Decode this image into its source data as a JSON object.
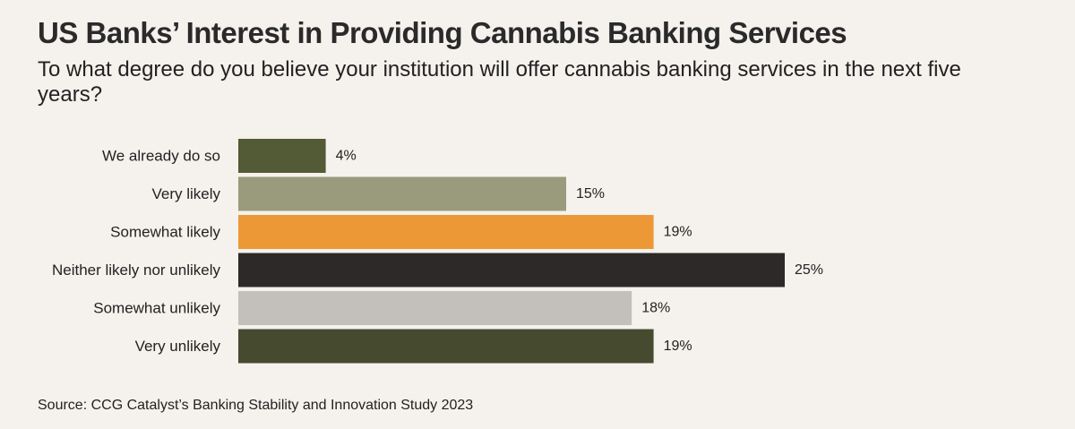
{
  "chart_data": {
    "type": "bar",
    "orientation": "horizontal",
    "title": "US Banks’ Interest in Providing Cannabis Banking Services",
    "subtitle": "To what degree do you believe your institution will offer cannabis banking services in the next five years?",
    "categories": [
      "We already do so",
      "Very likely",
      "Somewhat likely",
      "Neither likely nor unlikely",
      "Somewhat unlikely",
      "Very unlikely"
    ],
    "values": [
      4,
      15,
      19,
      25,
      18,
      19
    ],
    "value_labels": [
      "4%",
      "15%",
      "19%",
      "25%",
      "18%",
      "19%"
    ],
    "colors": [
      "#535a36",
      "#9a9b7d",
      "#ec9837",
      "#2d2928",
      "#c3c0bc",
      "#464b30"
    ],
    "xlim": [
      0,
      25
    ],
    "xlabel": "",
    "ylabel": "",
    "grid": false,
    "legend": "none"
  },
  "footer": {
    "source": "Source: CCG Catalyst’s Banking Stability and Innovation Study 2023"
  }
}
